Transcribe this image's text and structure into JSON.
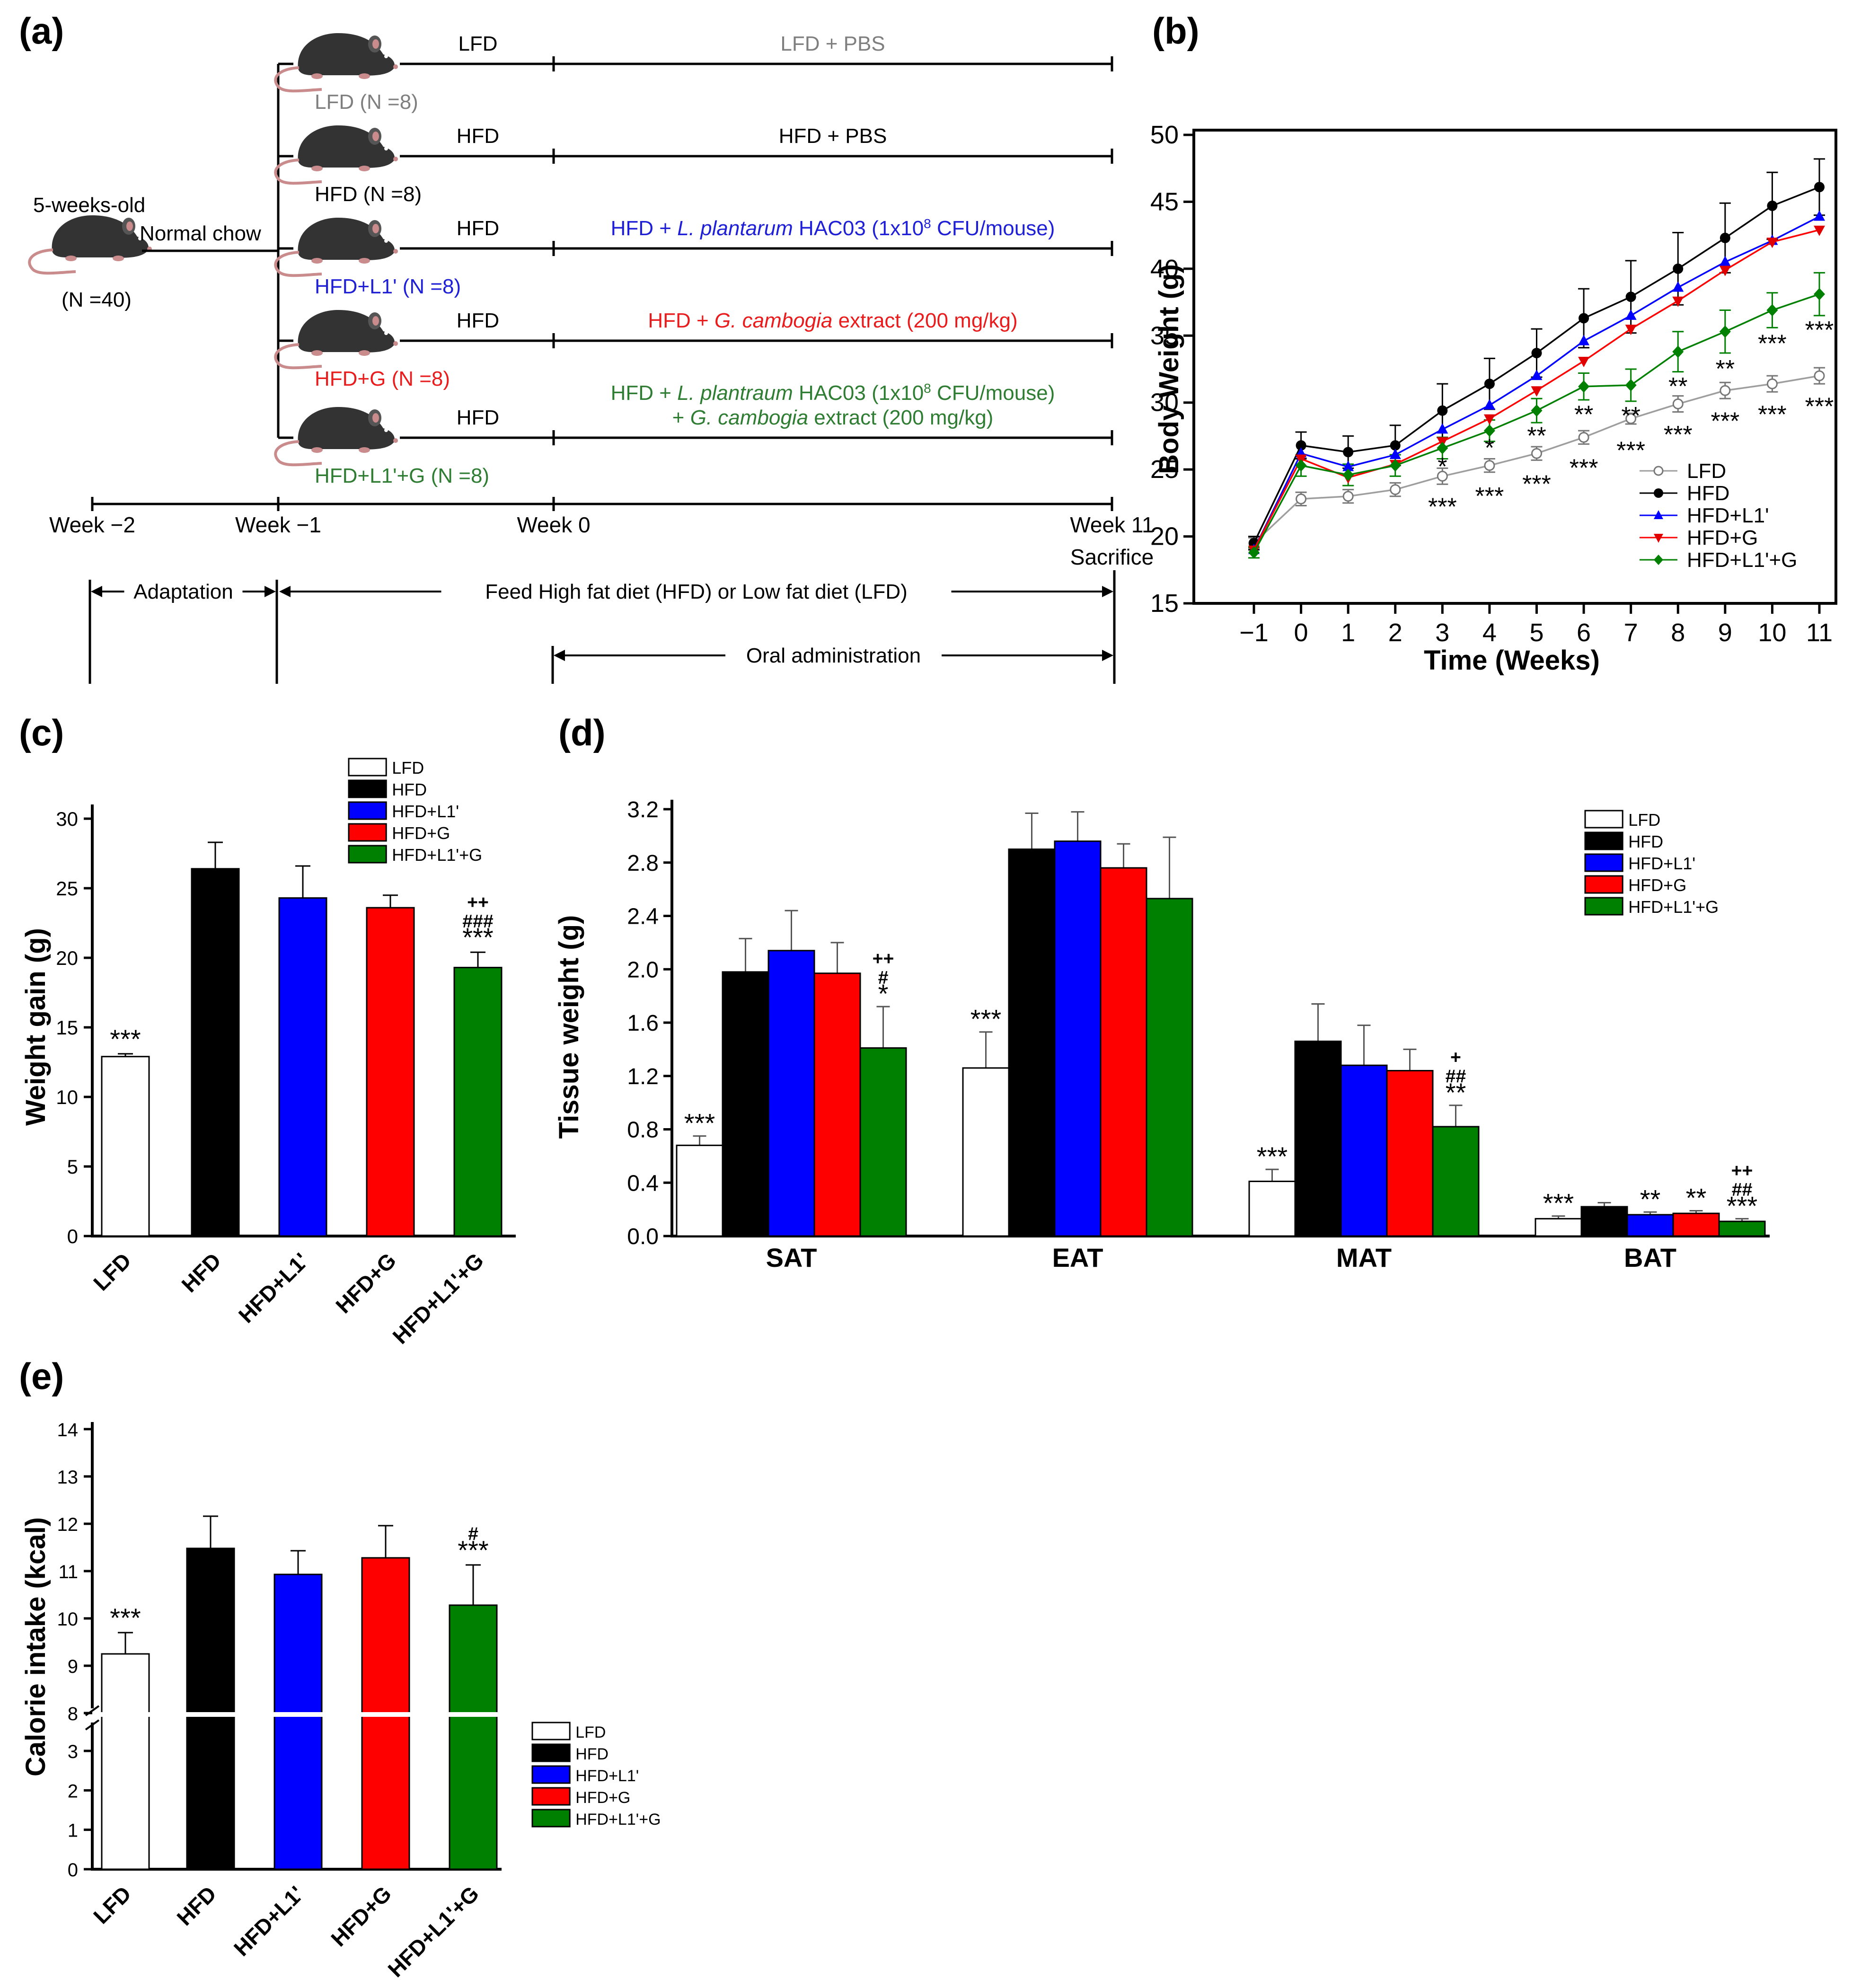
{
  "colors": {
    "LFD": "#ffffff",
    "HFD": "#000000",
    "HFD+L1'": "#0000ff",
    "HFD+G": "#ff0000",
    "HFD+L1'+G": "#008000",
    "LFD_text": "#7f7f7f",
    "L1_text": "#1f1fd6",
    "G_text": "#e81c1c",
    "L1G_text": "#2e7d32",
    "LFD_line": "#9e9e9e"
  },
  "panel_a": {
    "label": "(a)",
    "start": {
      "age": "5-weeks-old",
      "count": "(N =40)",
      "diet": "Normal chow"
    },
    "groups": [
      {
        "name": "LFD (N =8)",
        "pre": "LFD",
        "treat_parts": [
          "LFD + PBS"
        ],
        "color_key": "LFD_text"
      },
      {
        "name": "HFD (N =8)",
        "pre": "HFD",
        "treat_parts": [
          "HFD + PBS"
        ],
        "color_key": "HFD"
      },
      {
        "name": "HFD+L1' (N =8)",
        "pre": "HFD",
        "treat_parts": [
          "HFD + ",
          "L. plantarum",
          " HAC03 (1x10",
          "8",
          " CFU/mouse)"
        ],
        "color_key": "L1_text"
      },
      {
        "name": "HFD+G (N =8)",
        "pre": "HFD",
        "treat_parts": [
          "HFD + ",
          "G. cambogia",
          " extract (200 mg/kg)"
        ],
        "color_key": "G_text"
      },
      {
        "name": "HFD+L1'+G (N =8)",
        "pre": "HFD",
        "treat_parts": [
          "HFD + ",
          "L. plantraum",
          " HAC03 (1x10",
          "8",
          " CFU/mouse)"
        ],
        "treat_parts2": [
          "+ ",
          "G. cambogia",
          " extract (200 mg/kg)"
        ],
        "color_key": "L1G_text"
      }
    ],
    "timeline": {
      "weeks": [
        "Week −2",
        "Week −1",
        "Week 0",
        "Week 11"
      ],
      "sacrifice": "Sacrifice"
    },
    "phases": {
      "adaptation": "Adaptation",
      "feed": "Feed High fat diet (HFD) or Low fat diet (LFD)",
      "oral": "Oral administration"
    }
  },
  "chart_data": [
    {
      "panel": "(b)",
      "type": "line",
      "xlabel": "Time (Weeks)",
      "ylabel": "Body Weight (g)",
      "x": [
        -1,
        0,
        1,
        2,
        3,
        4,
        5,
        6,
        7,
        8,
        9,
        10,
        11
      ],
      "x_tick_labels": [
        "−1",
        "0",
        "1",
        "2",
        "3",
        "4",
        "5",
        "6",
        "7",
        "8",
        "9",
        "10",
        "11"
      ],
      "ylim": [
        15,
        50
      ],
      "yticks": [
        15,
        20,
        25,
        30,
        35,
        40,
        45,
        50
      ],
      "legend": "bottom-right",
      "series": [
        {
          "name": "LFD",
          "values": [
            19.5,
            22.8,
            23.0,
            23.5,
            24.5,
            25.3,
            26.2,
            27.4,
            28.8,
            29.9,
            30.9,
            31.4,
            32.0
          ],
          "errors": [
            0.4,
            0.5,
            0.5,
            0.5,
            0.6,
            0.5,
            0.5,
            0.5,
            0.4,
            0.6,
            0.6,
            0.6,
            0.6
          ]
        },
        {
          "name": "HFD",
          "values": [
            19.5,
            26.8,
            26.3,
            26.8,
            29.4,
            31.4,
            33.7,
            36.3,
            37.9,
            40.0,
            42.3,
            44.7,
            46.1
          ],
          "errors": [
            0.5,
            1.0,
            1.2,
            1.5,
            2.0,
            1.9,
            1.8,
            2.2,
            2.7,
            2.7,
            2.6,
            2.5,
            2.1
          ]
        },
        {
          "name": "HFD+L1'",
          "values": [
            19.0,
            26.2,
            25.2,
            26.1,
            28.0,
            29.8,
            32.0,
            34.6,
            36.5,
            38.6,
            40.5,
            42.1,
            43.9
          ]
        },
        {
          "name": "HFD+G",
          "values": [
            19.0,
            25.8,
            24.4,
            25.4,
            27.1,
            28.8,
            30.9,
            33.1,
            35.5,
            37.6,
            39.9,
            42.0,
            42.9
          ]
        },
        {
          "name": "HFD+L1'+G",
          "values": [
            18.8,
            25.3,
            24.6,
            25.3,
            26.6,
            27.9,
            29.4,
            31.2,
            31.3,
            33.8,
            35.3,
            36.9,
            38.1
          ],
          "errors": [
            0.4,
            0.8,
            0.8,
            0.8,
            0.8,
            0.8,
            0.9,
            1.0,
            1.2,
            1.5,
            1.6,
            1.3,
            1.6
          ]
        }
      ],
      "annotations": [
        {
          "x": 3,
          "y": 22.3,
          "text": "***"
        },
        {
          "x": 3,
          "y": 25.3,
          "text": "*"
        },
        {
          "x": 4,
          "y": 23.1,
          "text": "***"
        },
        {
          "x": 4,
          "y": 26.7,
          "text": "*"
        },
        {
          "x": 5,
          "y": 24.0,
          "text": "***"
        },
        {
          "x": 5,
          "y": 27.6,
          "text": "**"
        },
        {
          "x": 6,
          "y": 25.2,
          "text": "***"
        },
        {
          "x": 6,
          "y": 29.2,
          "text": "**"
        },
        {
          "x": 7,
          "y": 26.5,
          "text": "***"
        },
        {
          "x": 7,
          "y": 29.1,
          "text": "**"
        },
        {
          "x": 8,
          "y": 27.7,
          "text": "***"
        },
        {
          "x": 8,
          "y": 31.3,
          "text": "**"
        },
        {
          "x": 9,
          "y": 28.7,
          "text": "***"
        },
        {
          "x": 9,
          "y": 32.6,
          "text": "**"
        },
        {
          "x": 10,
          "y": 29.2,
          "text": "***"
        },
        {
          "x": 10,
          "y": 34.5,
          "text": "***"
        },
        {
          "x": 11,
          "y": 29.8,
          "text": "***"
        },
        {
          "x": 11,
          "y": 35.5,
          "text": "***"
        }
      ]
    },
    {
      "panel": "(c)",
      "type": "bar",
      "ylabel": "Weight gain (g)",
      "categories": [
        "LFD",
        "HFD",
        "HFD+L1'",
        "HFD+G",
        "HFD+L1'+G"
      ],
      "values": [
        12.9,
        26.4,
        24.3,
        23.6,
        19.3
      ],
      "errors": [
        0.2,
        1.9,
        2.3,
        0.9,
        1.1
      ],
      "ylim": [
        0,
        30
      ],
      "yticks": [
        0,
        5,
        10,
        15,
        20,
        25,
        30
      ],
      "significance": [
        "***",
        "",
        "",
        "",
        "***\n###\n++"
      ],
      "legend": "top-right"
    },
    {
      "panel": "(d)",
      "type": "bar",
      "ylabel": "Tissue weight (g)",
      "categories": [
        "SAT",
        "EAT",
        "MAT",
        "BAT"
      ],
      "ylim": [
        0,
        3.2
      ],
      "yticks": [
        "0.0",
        "0.4",
        "0.8",
        "1.2",
        "1.6",
        "2.0",
        "2.4",
        "2.8",
        "3.2"
      ],
      "series": [
        {
          "name": "LFD",
          "values": [
            0.68,
            1.26,
            0.41,
            0.13
          ],
          "errors": [
            0.07,
            0.27,
            0.09,
            0.02
          ],
          "sig": [
            "***",
            "***",
            "***",
            "***"
          ]
        },
        {
          "name": "HFD",
          "values": [
            1.98,
            2.9,
            1.46,
            0.22
          ],
          "errors": [
            0.25,
            0.27,
            0.28,
            0.03
          ],
          "sig": [
            "",
            "",
            "",
            ""
          ]
        },
        {
          "name": "HFD+L1'",
          "values": [
            2.14,
            2.96,
            1.28,
            0.16
          ],
          "errors": [
            0.3,
            0.22,
            0.3,
            0.02
          ],
          "sig": [
            "",
            "",
            "",
            "**"
          ]
        },
        {
          "name": "HFD+G",
          "values": [
            1.97,
            2.76,
            1.24,
            0.17
          ],
          "errors": [
            0.23,
            0.18,
            0.16,
            0.02
          ],
          "sig": [
            "",
            "",
            "",
            "**"
          ]
        },
        {
          "name": "HFD+L1'+G",
          "values": [
            1.41,
            2.53,
            0.82,
            0.11
          ],
          "errors": [
            0.31,
            0.46,
            0.16,
            0.02
          ],
          "sig": [
            "*\n#\n++",
            "",
            "**\n##\n+",
            "***\n##\n++"
          ]
        }
      ],
      "legend": "top-right"
    },
    {
      "panel": "(e)",
      "type": "bar",
      "ylabel": "Calorie intake (kcal)",
      "categories": [
        "LFD",
        "HFD",
        "HFD+L1'",
        "HFD+G",
        "HFD+L1'+G"
      ],
      "values": [
        9.25,
        11.48,
        10.93,
        11.28,
        10.28
      ],
      "errors": [
        0.45,
        0.68,
        0.5,
        0.68,
        0.85
      ],
      "axis_break": {
        "lower": [
          0,
          3
        ],
        "upper": [
          8,
          14
        ]
      },
      "yticks_lower": [
        0,
        1,
        2,
        3
      ],
      "yticks_upper": [
        8,
        9,
        10,
        11,
        12,
        13,
        14
      ],
      "significance": [
        "***",
        "",
        "",
        "",
        "***\n#"
      ],
      "legend": "bottom-right"
    }
  ]
}
